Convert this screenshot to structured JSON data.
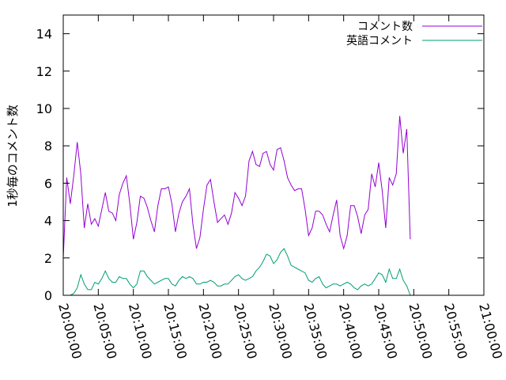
{
  "chart_data": {
    "type": "line",
    "title": "",
    "xlabel": "",
    "ylabel": "1秒毎のコメント数",
    "xlim": [
      "20:00:00",
      "21:00:00"
    ],
    "ylim": [
      0,
      15
    ],
    "x_ticks": [
      "20:00:00",
      "20:05:00",
      "20:10:00",
      "20:15:00",
      "20:20:00",
      "20:25:00",
      "20:30:00",
      "20:35:00",
      "20:40:00",
      "20:45:00",
      "20:50:00",
      "20:55:00",
      "21:00:00"
    ],
    "y_ticks": [
      "0",
      "2",
      "4",
      "6",
      "8",
      "10",
      "12",
      "14"
    ],
    "grid": false,
    "legend_position": "top-right",
    "x_sample_interval": "30s",
    "x_start": "20:00:00",
    "series": [
      {
        "name": "コメント数",
        "color": "#9400d3",
        "values": [
          2.0,
          6.3,
          4.9,
          6.4,
          8.2,
          6.5,
          3.6,
          4.9,
          3.8,
          4.1,
          3.7,
          4.6,
          5.5,
          4.5,
          4.4,
          4.0,
          5.4,
          6.0,
          6.4,
          4.9,
          3.0,
          3.9,
          5.3,
          5.2,
          4.7,
          4.0,
          3.4,
          4.8,
          5.7,
          5.7,
          5.8,
          4.9,
          3.4,
          4.4,
          5.0,
          5.3,
          5.7,
          3.8,
          2.5,
          3.1,
          4.6,
          5.9,
          6.2,
          5.0,
          3.9,
          4.1,
          4.3,
          3.8,
          4.4,
          5.5,
          5.2,
          4.8,
          5.3,
          7.2,
          7.7,
          7.0,
          6.9,
          7.6,
          7.7,
          7.0,
          6.7,
          7.8,
          7.9,
          7.2,
          6.3,
          5.9,
          5.6,
          5.7,
          5.7,
          4.6,
          3.2,
          3.6,
          4.5,
          4.5,
          4.3,
          3.8,
          3.4,
          4.3,
          5.1,
          3.2,
          2.5,
          3.2,
          4.8,
          4.8,
          4.2,
          3.3,
          4.3,
          4.6,
          6.5,
          5.8,
          7.1,
          5.6,
          3.6,
          6.3,
          5.9,
          6.5,
          9.6,
          7.6,
          8.9,
          3.0
        ]
      },
      {
        "name": "英語コメント",
        "color": "#009e73",
        "values": [
          null,
          null,
          0.0,
          0.1,
          0.4,
          1.1,
          0.6,
          0.3,
          0.3,
          0.7,
          0.6,
          0.9,
          1.3,
          0.9,
          0.7,
          0.7,
          1.0,
          0.9,
          0.9,
          0.6,
          0.4,
          0.6,
          1.3,
          1.3,
          1.0,
          0.8,
          0.6,
          0.7,
          0.8,
          0.9,
          0.9,
          0.6,
          0.5,
          0.8,
          1.0,
          0.9,
          1.0,
          0.9,
          0.6,
          0.6,
          0.7,
          0.7,
          0.8,
          0.7,
          0.5,
          0.5,
          0.6,
          0.6,
          0.8,
          1.0,
          1.1,
          0.9,
          0.8,
          0.9,
          1.0,
          1.3,
          1.5,
          1.8,
          2.2,
          2.1,
          1.7,
          1.9,
          2.3,
          2.5,
          2.1,
          1.6,
          1.5,
          1.4,
          1.3,
          1.2,
          0.8,
          0.7,
          0.9,
          1.0,
          0.6,
          0.4,
          0.5,
          0.6,
          0.6,
          0.5,
          0.6,
          0.7,
          0.6,
          0.4,
          0.3,
          0.5,
          0.6,
          0.5,
          0.6,
          0.9,
          1.2,
          1.1,
          0.7,
          1.4,
          0.9,
          0.9,
          1.4,
          0.8,
          0.5,
          0.0
        ]
      }
    ]
  }
}
